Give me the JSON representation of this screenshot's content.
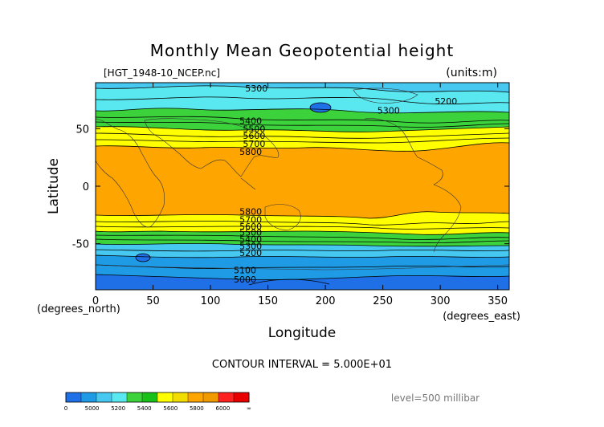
{
  "chart_data": {
    "type": "contour",
    "title": "Monthly Mean Geopotential height",
    "source_label": "[HGT_1948-10_NCEP.nc]",
    "units_label": "(units:m)",
    "xlabel": "Longitude",
    "ylabel": "Latitude",
    "x_units_label": "(degrees_east)",
    "y_units_label": "(degrees_north)",
    "xlim": [
      0,
      360
    ],
    "ylim": [
      -90,
      90
    ],
    "x_ticks": [
      "0",
      "50",
      "100",
      "150",
      "200",
      "250",
      "300",
      "350"
    ],
    "x_tick_values": [
      0,
      50,
      100,
      150,
      200,
      250,
      300,
      350
    ],
    "y_ticks": [
      "50",
      "0",
      "-50"
    ],
    "y_tick_values": [
      50,
      0,
      -50
    ],
    "contour_interval_text": "CONTOUR INTERVAL = 5.000E+01",
    "level_text": "level=500 millibar",
    "contour_labels": [
      {
        "text": "5300",
        "lon": 140,
        "lat": 85
      },
      {
        "text": "5300",
        "lon": 255,
        "lat": 66
      },
      {
        "text": "5200",
        "lon": 305,
        "lat": 74
      },
      {
        "text": "5400",
        "lon": 135,
        "lat": 57
      },
      {
        "text": "5500",
        "lon": 138,
        "lat": 50
      },
      {
        "text": "5600",
        "lon": 138,
        "lat": 44
      },
      {
        "text": "5700",
        "lon": 138,
        "lat": 37
      },
      {
        "text": "5800",
        "lon": 135,
        "lat": 30
      },
      {
        "text": "5800",
        "lon": 135,
        "lat": -22
      },
      {
        "text": "5700",
        "lon": 135,
        "lat": -29
      },
      {
        "text": "5600",
        "lon": 135,
        "lat": -35
      },
      {
        "text": "5500",
        "lon": 135,
        "lat": -40
      },
      {
        "text": "5400",
        "lon": 135,
        "lat": -46
      },
      {
        "text": "5300",
        "lon": 135,
        "lat": -52
      },
      {
        "text": "5200",
        "lon": 135,
        "lat": -58
      },
      {
        "text": "5100",
        "lon": 130,
        "lat": -73
      },
      {
        "text": "5000",
        "lon": 130,
        "lat": -81
      }
    ],
    "colorbar": {
      "tick_labels": [
        "0",
        "5000",
        "5200",
        "5400",
        "5600",
        "5800",
        "6000",
        "∞"
      ],
      "colors": [
        "#1f6fe6",
        "#1f9be6",
        "#46c8f0",
        "#5ae8f0",
        "#3bd23b",
        "#18c018",
        "#ffff00",
        "#f2dd00",
        "#ffa500",
        "#f09a00",
        "#ff2020",
        "#e80000"
      ]
    },
    "bands": [
      {
        "value": 5150,
        "color": "#1f6fe6"
      },
      {
        "value": 5300,
        "color": "#1f9be6"
      },
      {
        "value": 5400,
        "color": "#46c8f0"
      },
      {
        "value": 5500,
        "color": "#3bd23b"
      },
      {
        "value": 5700,
        "color": "#ffff00"
      },
      {
        "value": 5850,
        "color": "#ffa500"
      }
    ]
  }
}
